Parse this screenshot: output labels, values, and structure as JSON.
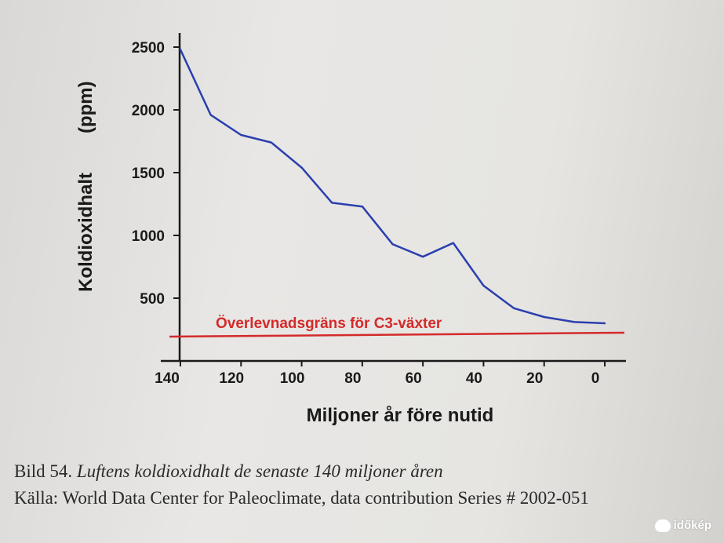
{
  "chart_data": {
    "type": "line",
    "xlabel": "Miljoner år före nutid",
    "ylabel": "Koldioxidhalt",
    "ylabel_unit": "(ppm)",
    "x_ticks": [
      140,
      120,
      100,
      80,
      60,
      40,
      20,
      0
    ],
    "y_ticks": [
      500,
      1000,
      1500,
      2000,
      2500
    ],
    "xlim": [
      140,
      0
    ],
    "ylim": [
      0,
      2650
    ],
    "series": [
      {
        "color": "#2b3fae",
        "x": [
          140,
          130,
          120,
          110,
          100,
          90,
          80,
          70,
          60,
          50,
          40,
          30,
          20,
          10,
          0
        ],
        "values": [
          2480,
          1960,
          1800,
          1740,
          1540,
          1260,
          1230,
          930,
          830,
          940,
          600,
          420,
          350,
          310,
          300
        ]
      }
    ],
    "threshold": {
      "label": "Överlevnadsgräns för C3-växter",
      "value": 180,
      "color": "#d42a2a"
    },
    "grid": false
  },
  "caption": {
    "number": "Bild 54.",
    "title": "Luftens koldioxidhalt de senaste 140 miljoner åren",
    "source": "Källa: World Data Center for Paleoclimate, data contribution Series # 2002-051"
  },
  "watermark": {
    "text": "időkép"
  }
}
